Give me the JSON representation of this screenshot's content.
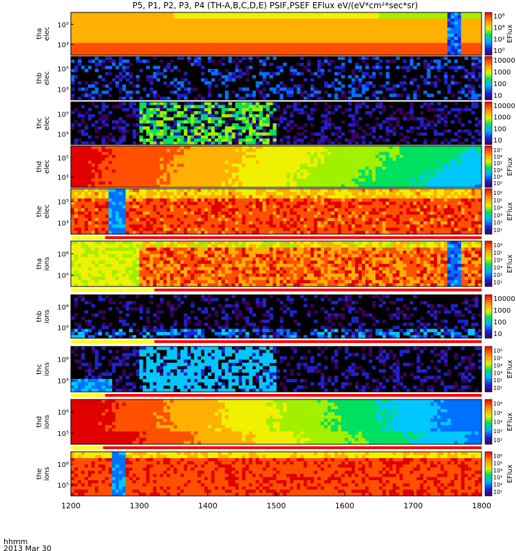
{
  "title": "P5, P1, P2, P3, P4 (TH-A,B,C,D,E) PSIF,PSEF EFlux eV/(eV*cm²*sec*sr)",
  "x_label_line1": "hhmm",
  "x_label_line2": "2013 Mar 30",
  "x_ticks": [
    "1200",
    "1300",
    "1400",
    "1500",
    "1600",
    "1700",
    "1800"
  ],
  "colorbar_label": "EFlux",
  "chart_data": [
    {
      "type": "heatmap",
      "ylabel": [
        "tha",
        "elec"
      ],
      "y_ticks": [
        "10⁵",
        "10³"
      ],
      "cbar_ticks": [
        "10⁶",
        "10⁴",
        "10²",
        "10⁰"
      ],
      "cbar_label": "EFlux",
      "x": [
        1200,
        1800
      ],
      "quality_bar": false,
      "summary": "Strong red/orange flux most of interval; blue/black gap near 1755-1765"
    },
    {
      "type": "heatmap",
      "ylabel": [
        "thb",
        "elec"
      ],
      "y_ticks": [
        "10⁵",
        "10³"
      ],
      "cbar_ticks": [
        "10000",
        "1000",
        "100",
        "10"
      ],
      "cbar_label": "",
      "x": [
        1200,
        1800
      ],
      "quality_bar": false,
      "summary": "Sparse purple/blue flux, mostly black"
    },
    {
      "type": "heatmap",
      "ylabel": [
        "thc",
        "elec"
      ],
      "y_ticks": [
        "10⁵",
        "10³"
      ],
      "cbar_ticks": [
        "10000",
        "1000",
        "100",
        "10"
      ],
      "cbar_label": "",
      "x": [
        1200,
        1800
      ],
      "quality_bar": false,
      "summary": "Green/cyan stripes 1300-1500, purple later"
    },
    {
      "type": "heatmap",
      "ylabel": [
        "thd",
        "elec"
      ],
      "y_ticks": [
        "10⁵",
        "10³"
      ],
      "cbar_ticks": [
        "10⁷",
        "10⁶",
        "10⁵",
        "10⁴",
        "10³",
        "10²"
      ],
      "cbar_label": "EFlux",
      "x": [
        1200,
        1800
      ],
      "quality_bar": false,
      "summary": "Red at start fading to yellow/green/cyan"
    },
    {
      "type": "heatmap",
      "ylabel": [
        "the",
        "elec"
      ],
      "y_ticks": [
        "10⁵",
        "10³"
      ],
      "cbar_ticks": [
        "10⁶",
        "10⁵",
        "10⁴",
        "10³",
        "10²",
        "10¹"
      ],
      "cbar_label": "EFlux",
      "x": [
        1200,
        1800
      ],
      "quality_bar": true,
      "quality_yellow_end": 1250,
      "summary": "Red/orange dominant; blue gap near 1255-1275"
    },
    {
      "type": "heatmap",
      "ylabel": [
        "tha",
        "ions"
      ],
      "y_ticks": [
        "10⁶",
        "10⁵"
      ],
      "cbar_ticks": [
        "10⁶",
        "10⁵",
        "10⁴",
        "10³",
        "10²",
        "10¹"
      ],
      "cbar_label": "EFlux",
      "x": [
        1200,
        1800
      ],
      "quality_bar": true,
      "quality_yellow_end": 1322,
      "summary": "Green to red flux; blue gap near 1755-1765"
    },
    {
      "type": "heatmap",
      "ylabel": [
        "thb",
        "ions"
      ],
      "y_ticks": [
        "10⁶",
        "10⁵"
      ],
      "cbar_ticks": [
        "10000",
        "1000",
        "100",
        "10"
      ],
      "cbar_label": "",
      "x": [
        1200,
        1800
      ],
      "quality_bar": true,
      "quality_yellow_end": 1322,
      "summary": "Sparse purple/blue flux"
    },
    {
      "type": "heatmap",
      "ylabel": [
        "thc",
        "ions"
      ],
      "y_ticks": [
        "10⁶",
        "10⁵"
      ],
      "cbar_ticks": [
        "10⁶",
        "10⁵",
        "10⁴",
        "10³",
        "10²",
        "10¹"
      ],
      "cbar_label": "EFlux",
      "x": [
        1200,
        1800
      ],
      "quality_bar": true,
      "quality_yellow_end": 1250,
      "summary": "Cyan stripes 1300-1500, purple later"
    },
    {
      "type": "heatmap",
      "ylabel": [
        "thd",
        "ions"
      ],
      "y_ticks": [
        "10⁶",
        "10⁵"
      ],
      "cbar_ticks": [
        "10⁶",
        "10⁵",
        "10⁴",
        "10³",
        "10²"
      ],
      "cbar_label": "EFlux",
      "x": [
        1200,
        1800
      ],
      "quality_bar": true,
      "quality_yellow_end": 1247,
      "summary": "Red at start fading to cyan/blue"
    },
    {
      "type": "heatmap",
      "ylabel": [
        "the",
        "ions"
      ],
      "y_ticks": [
        "10⁶",
        "10⁵"
      ],
      "cbar_ticks": [
        "10⁶",
        "10⁵",
        "10⁴",
        "10³",
        "10²",
        "10¹"
      ],
      "cbar_label": "EFlux",
      "x": [
        1200,
        1800
      ],
      "quality_bar": false,
      "summary": "Red/orange dominant; blue gap near 1262-1282"
    }
  ]
}
